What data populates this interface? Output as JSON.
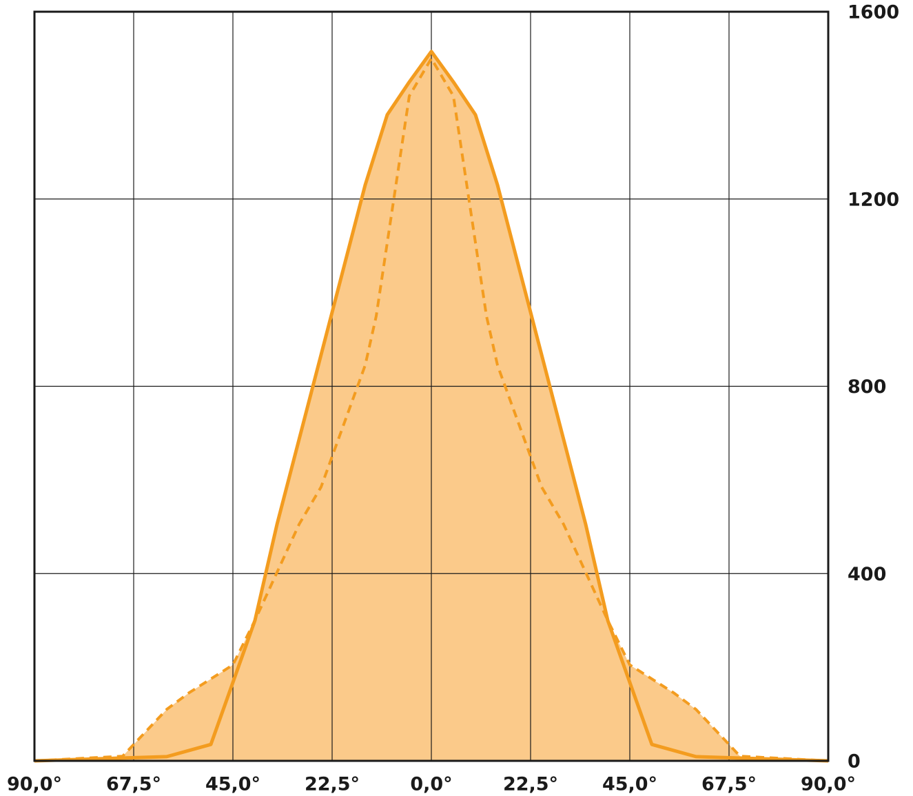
{
  "chart_data": {
    "type": "area",
    "xlim": [
      -90,
      90
    ],
    "xticks": [
      {
        "value": -90,
        "label": "90,0°"
      },
      {
        "value": -67.5,
        "label": "67,5°"
      },
      {
        "value": -45,
        "label": "45,0°"
      },
      {
        "value": -22.5,
        "label": "22,5°"
      },
      {
        "value": 0,
        "label": "0,0°"
      },
      {
        "value": 22.5,
        "label": "22,5°"
      },
      {
        "value": 45,
        "label": "45,0°"
      },
      {
        "value": 67.5,
        "label": "67,5°"
      },
      {
        "value": 90,
        "label": "90,0°"
      }
    ],
    "ylim": [
      0,
      1600
    ],
    "yticks": [
      0,
      400,
      800,
      1200,
      1600
    ],
    "grid": true,
    "fill_color": "#fbca8a",
    "series": [
      {
        "color": "#f39c1f",
        "dashed": false,
        "x": [
          -90,
          -60,
          -50,
          -40,
          -35,
          -15,
          -10,
          -5,
          0,
          5,
          10,
          15,
          35,
          40,
          50,
          60,
          90
        ],
        "values": [
          0,
          9,
          35,
          300,
          505,
          1230,
          1380,
          1450,
          1515,
          1450,
          1380,
          1230,
          505,
          300,
          35,
          9,
          0
        ]
      },
      {
        "color": "#f39c1f",
        "dashed": true,
        "x": [
          -90,
          -70,
          -67.5,
          -60,
          -55,
          -45,
          -40,
          -30,
          -25,
          -15,
          -12.5,
          -5,
          0,
          5,
          12.5,
          15,
          25,
          30,
          40,
          45,
          55,
          60,
          67.5,
          70,
          90
        ],
        "values": [
          0,
          10,
          35,
          110,
          145,
          205,
          300,
          505,
          585,
          845,
          950,
          1420,
          1500,
          1420,
          950,
          845,
          585,
          505,
          300,
          205,
          145,
          110,
          35,
          10,
          0
        ]
      }
    ]
  }
}
